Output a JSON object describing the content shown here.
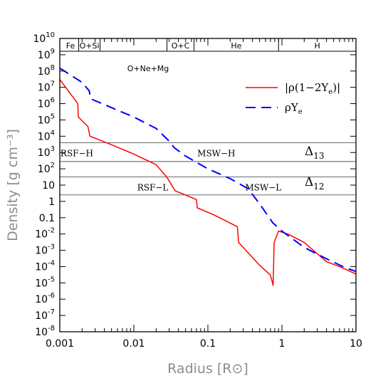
{
  "chart_data": {
    "type": "line",
    "xlabel": "Radius [R⊙]",
    "ylabel": "Density [g cm⁻³]",
    "xscale": "log",
    "yscale": "log",
    "xlim": [
      0.001,
      10
    ],
    "ylim": [
      1e-08,
      10000000000.0
    ],
    "xticks": [
      {
        "value": 0.001,
        "label": "0.001"
      },
      {
        "value": 0.01,
        "label": "0.01"
      },
      {
        "value": 0.1,
        "label": "0.1"
      },
      {
        "value": 1,
        "label": "1"
      },
      {
        "value": 10,
        "label": "10"
      }
    ],
    "yticks": [
      {
        "value": 10000000000.0,
        "base": "10",
        "exp": "10"
      },
      {
        "value": 1000000000.0,
        "base": "10",
        "exp": "9"
      },
      {
        "value": 100000000.0,
        "base": "10",
        "exp": "8"
      },
      {
        "value": 10000000.0,
        "base": "10",
        "exp": "7"
      },
      {
        "value": 1000000.0,
        "base": "10",
        "exp": "6"
      },
      {
        "value": 100000.0,
        "base": "10",
        "exp": "5"
      },
      {
        "value": 10000.0,
        "base": "10",
        "exp": "4"
      },
      {
        "value": 1000.0,
        "base": "10",
        "exp": "3"
      },
      {
        "value": 100,
        "base": "10",
        "exp": "2"
      },
      {
        "value": 10,
        "base": "10",
        "exp": ""
      },
      {
        "value": 1,
        "base": "1",
        "exp": ""
      },
      {
        "value": 0.1,
        "base": "0.1",
        "exp": ""
      },
      {
        "value": 0.01,
        "base": "10",
        "exp": "-2"
      },
      {
        "value": 0.001,
        "base": "10",
        "exp": "-3"
      },
      {
        "value": 0.0001,
        "base": "10",
        "exp": "-4"
      },
      {
        "value": 1e-05,
        "base": "10",
        "exp": "-5"
      },
      {
        "value": 1e-06,
        "base": "10",
        "exp": "-6"
      },
      {
        "value": 1e-07,
        "base": "10",
        "exp": "-7"
      },
      {
        "value": 1e-08,
        "base": "10",
        "exp": "-8"
      }
    ],
    "series": [
      {
        "name": "|ρ(1−2Ye)|",
        "color": "#ff0000",
        "style": "solid",
        "points": [
          [
            0.001,
            30000000.0
          ],
          [
            0.00175,
            1000000.0
          ],
          [
            0.00178,
            150000.0
          ],
          [
            0.0024,
            40000.0
          ],
          [
            0.00255,
            10000.0
          ],
          [
            0.005,
            3000.0
          ],
          [
            0.01,
            800.0
          ],
          [
            0.02,
            180.0
          ],
          [
            0.028,
            30.0
          ],
          [
            0.036,
            4.5
          ],
          [
            0.07,
            1.3
          ],
          [
            0.072,
            0.4
          ],
          [
            0.12,
            0.15
          ],
          [
            0.25,
            0.028
          ],
          [
            0.26,
            0.003
          ],
          [
            0.5,
            0.00012
          ],
          [
            0.7,
            3e-05
          ],
          [
            0.76,
            7e-06
          ],
          [
            0.785,
            0.003
          ],
          [
            0.9,
            0.015
          ],
          [
            1.2,
            0.01
          ],
          [
            2.0,
            0.003
          ],
          [
            4.0,
            0.0002
          ],
          [
            6.0,
            0.0001
          ],
          [
            10.0,
            3.5e-05
          ]
        ]
      },
      {
        "name": "ρYe",
        "color": "#0000ff",
        "style": "dashed",
        "points": [
          [
            0.001,
            150000000.0
          ],
          [
            0.002,
            20000000.0
          ],
          [
            0.0025,
            6000000.0
          ],
          [
            0.0026,
            2000000.0
          ],
          [
            0.006,
            400000.0
          ],
          [
            0.01,
            150000.0
          ],
          [
            0.02,
            30000.0
          ],
          [
            0.03,
            5000.0
          ],
          [
            0.035,
            2000.0
          ],
          [
            0.05,
            600.0
          ],
          [
            0.1,
            100.0
          ],
          [
            0.2,
            25.0
          ],
          [
            0.35,
            6.0
          ],
          [
            0.5,
            0.7
          ],
          [
            0.75,
            0.05
          ],
          [
            1.0,
            0.015
          ],
          [
            2.0,
            0.0015
          ],
          [
            4.0,
            0.0003
          ],
          [
            7.0,
            9e-05
          ],
          [
            10.0,
            5e-05
          ]
        ]
      }
    ],
    "hlines": [
      4000.0,
      280.0,
      32.0,
      2.5
    ],
    "regions": [
      {
        "label": "Fe",
        "x_start": 0.001,
        "x_end": 0.0018
      },
      {
        "label": "O+Si",
        "x_start": 0.0018,
        "x_end": 0.0035
      },
      {
        "label": "O+C",
        "x_start": 0.028,
        "x_end": 0.065
      },
      {
        "label": "He",
        "x_start": 0.065,
        "x_end": 0.9
      },
      {
        "label": "H",
        "x_start": 0.9,
        "x_end": 10
      }
    ],
    "region_label_sub": "O+Ne+Mg",
    "annotations": [
      {
        "label": "RSF−H",
        "x": 0.0017,
        "y": 900
      },
      {
        "label": "MSW−H",
        "x": 0.13,
        "y": 900
      },
      {
        "label": "RSF−L",
        "x": 0.018,
        "y": 7
      },
      {
        "label": "MSW−L",
        "x": 0.56,
        "y": 7
      }
    ],
    "deltas": [
      {
        "base": "Δ",
        "sub": "13"
      },
      {
        "base": "Δ",
        "sub": "12"
      }
    ],
    "legend": [
      {
        "series": 0,
        "text": "|ρ(1−2Y",
        "sub": "e",
        "tail": ")|"
      },
      {
        "series": 1,
        "text": "ρY",
        "sub": "e",
        "tail": ""
      }
    ]
  }
}
